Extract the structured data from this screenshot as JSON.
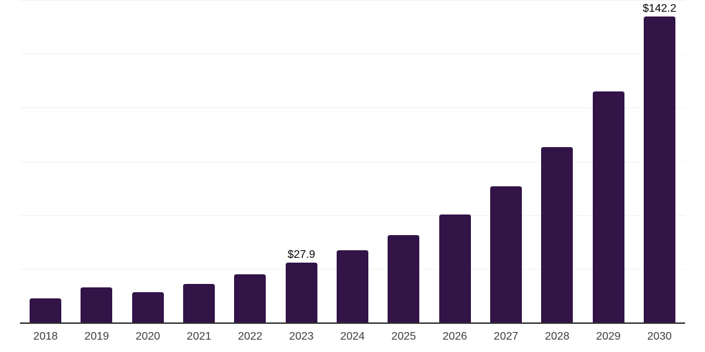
{
  "chart_data": {
    "type": "bar",
    "title": "",
    "xlabel": "",
    "ylabel": "",
    "categories": [
      "2018",
      "2019",
      "2020",
      "2021",
      "2022",
      "2023",
      "2024",
      "2025",
      "2026",
      "2027",
      "2028",
      "2029",
      "2030"
    ],
    "values": [
      11.2,
      16.4,
      14.0,
      17.9,
      22.3,
      27.9,
      33.5,
      40.5,
      50.1,
      63.3,
      81.6,
      107.5,
      142.2
    ],
    "data_labels": [
      {
        "category": "2023",
        "text": "$27.9"
      },
      {
        "category": "2030",
        "text": "$142.2"
      }
    ],
    "ylim": [
      0,
      150
    ],
    "gridline_values": [
      25,
      50,
      75,
      100,
      125,
      150
    ],
    "grid": true,
    "legend": false,
    "y_axis_ticks_visible": false,
    "bar_color": "#321447",
    "grid_color": "#f2f2f2",
    "axis_color": "#2f2f2f",
    "tick_label_color": "#3c3c3c",
    "value_label_color": "#000000",
    "background_color": "#ffffff"
  }
}
